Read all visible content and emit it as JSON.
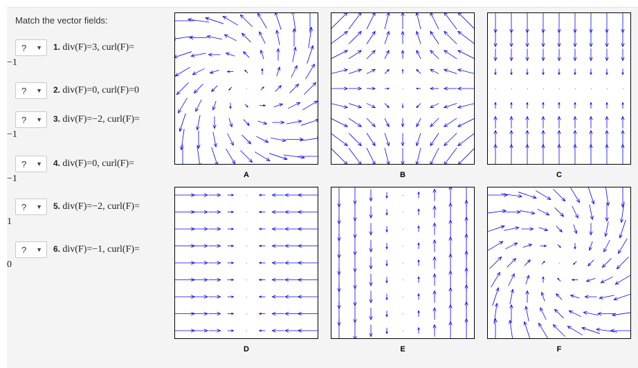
{
  "prompt": "Match the vector fields:",
  "questions": [
    {
      "select": "?",
      "num": "1.",
      "text": "div(F)=3, curl(F)=",
      "cont": "−1"
    },
    {
      "select": "?",
      "num": "2.",
      "text": "div(F)=0, curl(F)=0",
      "cont": ""
    },
    {
      "select": "?",
      "num": "3.",
      "text": "div(F)=−2, curl(F)=",
      "cont": "−1"
    },
    {
      "select": "?",
      "num": "4.",
      "text": "div(F)=0, curl(F)=",
      "cont": "−1"
    },
    {
      "select": "?",
      "num": "5.",
      "text": "div(F)=−2, curl(F)=",
      "cont": "1"
    },
    {
      "select": "?",
      "num": "6.",
      "text": "div(F)=−1, curl(F)=",
      "cont": "0"
    }
  ],
  "plots": [
    {
      "label": "A",
      "field": "A"
    },
    {
      "label": "B",
      "field": "B"
    },
    {
      "label": "C",
      "field": "C"
    },
    {
      "label": "D",
      "field": "D"
    },
    {
      "label": "E",
      "field": "E"
    },
    {
      "label": "F",
      "field": "F"
    }
  ],
  "colors": {
    "arrow": "#0000ee",
    "frame": "#000000"
  }
}
